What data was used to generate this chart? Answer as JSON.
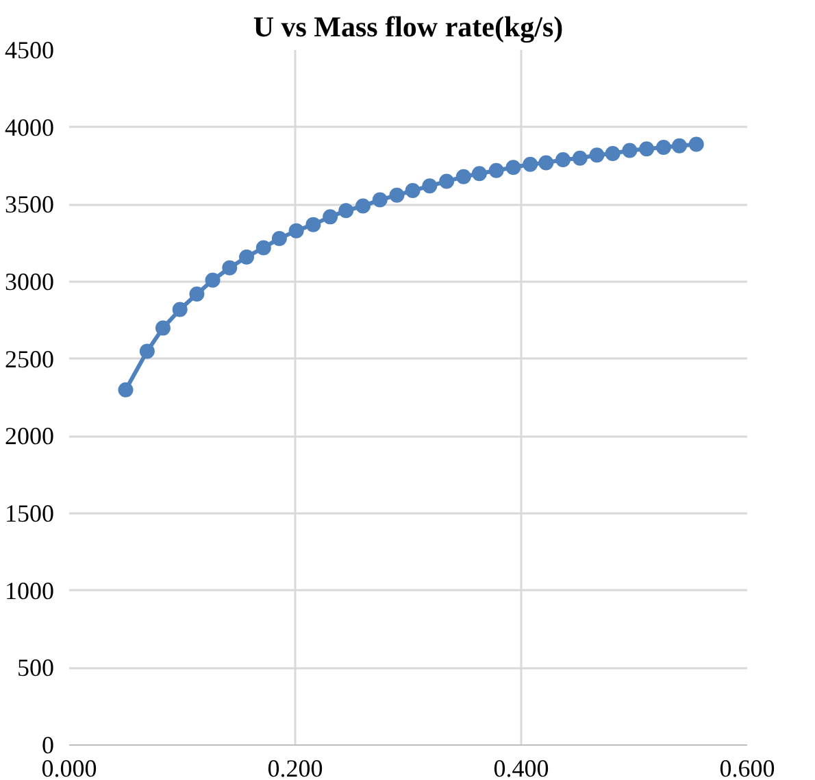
{
  "chart_data": {
    "type": "line",
    "title": "U vs Mass flow rate(kg/s)",
    "x": [
      0.05,
      0.069,
      0.083,
      0.098,
      0.113,
      0.127,
      0.142,
      0.157,
      0.172,
      0.186,
      0.201,
      0.216,
      0.231,
      0.245,
      0.26,
      0.275,
      0.29,
      0.304,
      0.319,
      0.334,
      0.349,
      0.363,
      0.378,
      0.393,
      0.408,
      0.422,
      0.437,
      0.452,
      0.467,
      0.481,
      0.496,
      0.511,
      0.526,
      0.54,
      0.555
    ],
    "series": [
      {
        "color": "#4f81bd",
        "values": [
          2300,
          2550,
          2700,
          2820,
          2920,
          3010,
          3090,
          3160,
          3220,
          3280,
          3330,
          3370,
          3420,
          3460,
          3490,
          3530,
          3560,
          3590,
          3620,
          3650,
          3680,
          3700,
          3720,
          3740,
          3760,
          3770,
          3790,
          3800,
          3820,
          3830,
          3850,
          3860,
          3870,
          3880,
          3890
        ]
      }
    ],
    "xlim": [
      0,
      0.6
    ],
    "xticks": [
      {
        "value": 0,
        "label": "0.000"
      },
      {
        "value": 0.2,
        "label": "0.200"
      },
      {
        "value": 0.4,
        "label": "0.400"
      },
      {
        "value": 0.6,
        "label": "0.600"
      }
    ],
    "ylim": [
      0,
      4500
    ],
    "yticks": [
      0,
      500,
      1000,
      1500,
      2000,
      2500,
      3000,
      3500,
      4000,
      4500
    ],
    "grid": true,
    "marker": "circle",
    "line_style": "solid"
  }
}
